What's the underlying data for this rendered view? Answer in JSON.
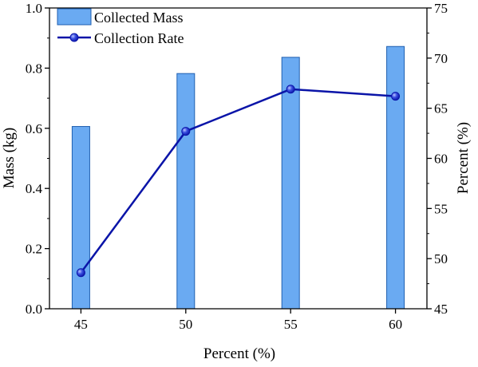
{
  "chart_data": {
    "type": "bar+line",
    "title": "",
    "x": [
      45,
      50,
      55,
      60
    ],
    "x_tick_labels": [
      "45",
      "50",
      "55",
      "60"
    ],
    "xlabel": "Percent (%)",
    "xlim": [
      43.5,
      61.5
    ],
    "y_left": {
      "label": "Mass (kg)",
      "lim": [
        0,
        1.0
      ],
      "ticks": [
        0.0,
        0.2,
        0.4,
        0.6,
        0.8,
        1.0
      ],
      "tick_labels": [
        "0.0",
        "0.2",
        "0.4",
        "0.6",
        "0.8",
        "1.0"
      ]
    },
    "y_right": {
      "label": "Percent (%)",
      "lim": [
        45,
        75
      ],
      "ticks": [
        45,
        50,
        55,
        60,
        65,
        70,
        75
      ],
      "tick_labels": [
        "45",
        "50",
        "55",
        "60",
        "65",
        "70",
        "75"
      ]
    },
    "series": [
      {
        "name": "Collected Mass",
        "type": "bar",
        "axis": "left",
        "color": "#6aaaf2",
        "edge_color": "#1f5fb0",
        "values": [
          0.606,
          0.782,
          0.836,
          0.872
        ]
      },
      {
        "name": "Collection Rate",
        "type": "line",
        "axis": "right",
        "color": "#0a14a8",
        "marker": "circle",
        "values": [
          48.6,
          62.7,
          66.9,
          66.2
        ]
      }
    ],
    "legend": {
      "placement": "top-left",
      "entries": [
        "Collected Mass",
        "Collection Rate"
      ]
    },
    "grid": false
  }
}
